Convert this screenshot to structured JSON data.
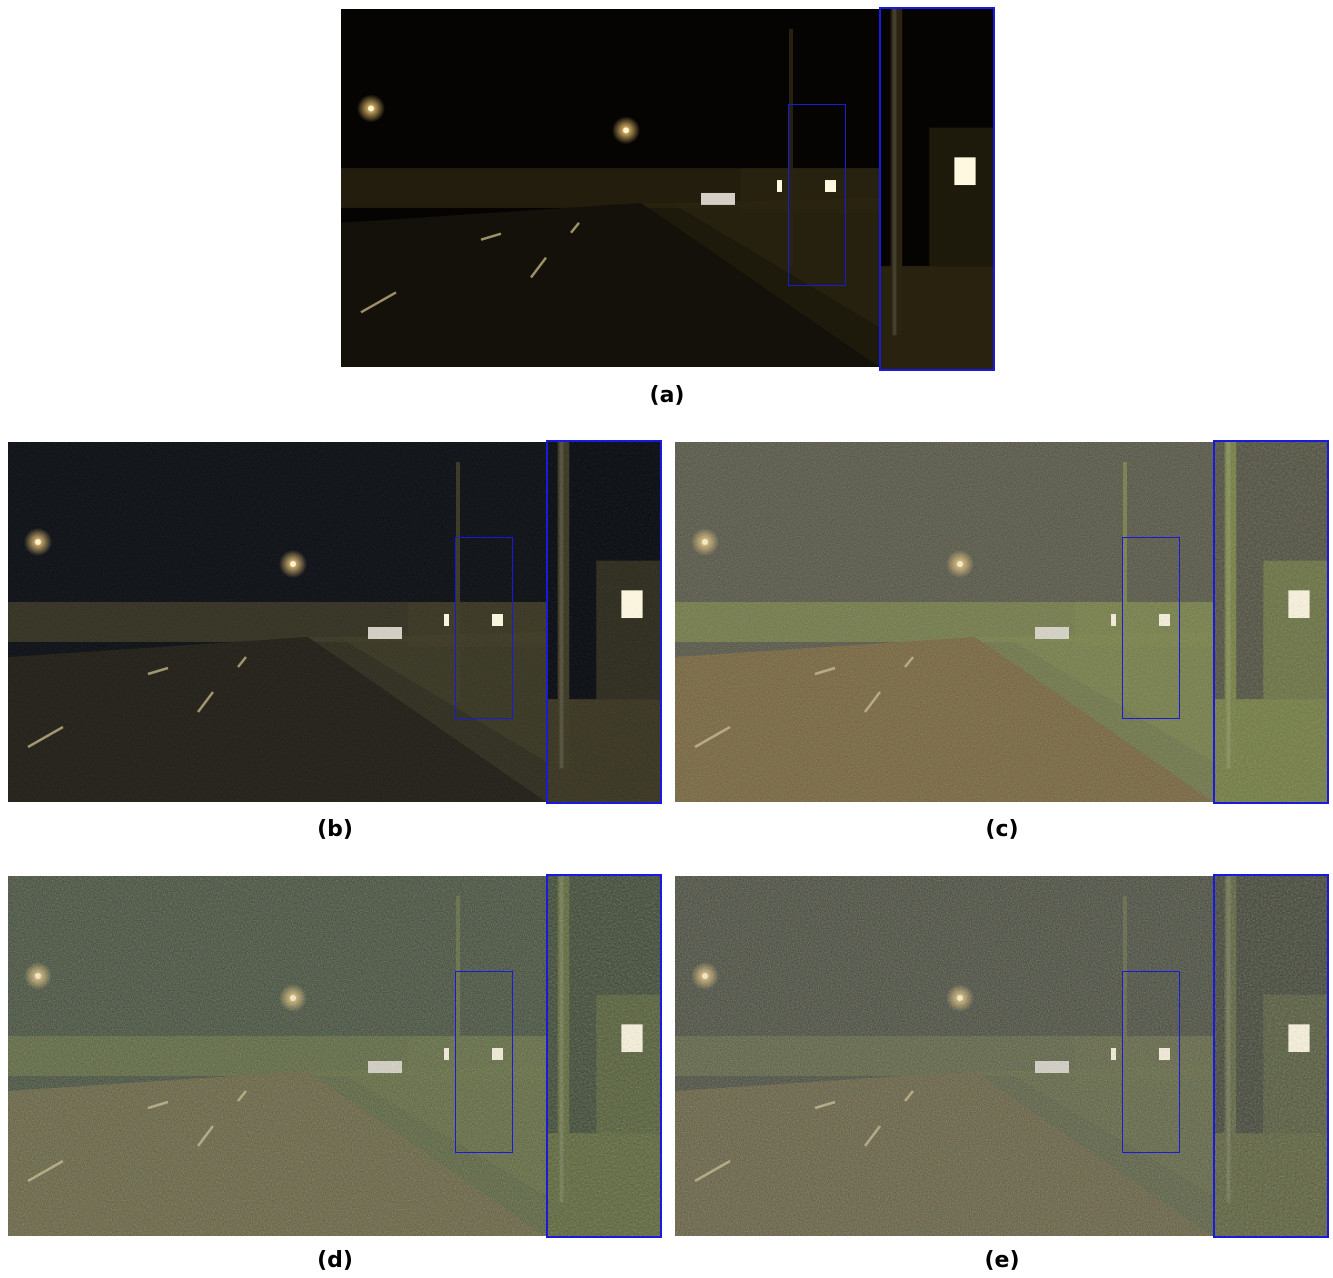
{
  "panels": [
    {
      "id": "a",
      "label": "(a)",
      "sky": "#050402",
      "road": "#14100a",
      "tint": "#2a2410",
      "noise": 0.0
    },
    {
      "id": "b",
      "label": "(b)",
      "sky": "#070a10",
      "road": "#1d1a12",
      "tint": "#3a3620",
      "noise": 0.15
    },
    {
      "id": "c",
      "label": "(c)",
      "sky": "#4a4a38",
      "road": "#6e5a2e",
      "tint": "#6f7a3a",
      "noise": 0.45
    },
    {
      "id": "d",
      "label": "(d)",
      "sky": "#34402a",
      "road": "#5a5630",
      "tint": "#55602e",
      "noise": 0.55
    },
    {
      "id": "e",
      "label": "(e)",
      "sky": "#3a3e2e",
      "road": "#5a5432",
      "tint": "#565c34",
      "noise": 0.55
    }
  ],
  "colors": {
    "frame": "#1a1adf",
    "lamp": "#ffd27a",
    "window": "#fff8e0"
  }
}
